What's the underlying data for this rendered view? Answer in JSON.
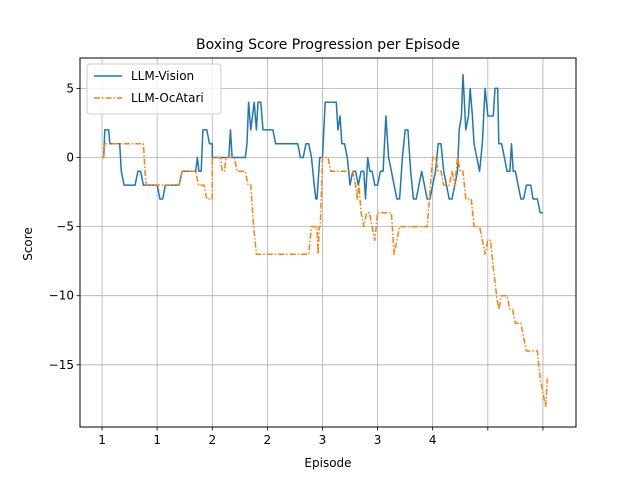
{
  "chart_data": {
    "type": "line",
    "title": "Boxing Score Progression per Episode",
    "xlabel": "Episode",
    "ylabel": "Score",
    "xlim": [
      -40,
      860
    ],
    "ylim": [
      -19.5,
      7.2
    ],
    "xticks": [
      {
        "pos": 0,
        "label": "1"
      },
      {
        "pos": 100,
        "label": "1"
      },
      {
        "pos": 200,
        "label": "2"
      },
      {
        "pos": 300,
        "label": "2"
      },
      {
        "pos": 400,
        "label": "3"
      },
      {
        "pos": 500,
        "label": "3"
      },
      {
        "pos": 600,
        "label": "4"
      },
      {
        "pos": 700,
        "label": ""
      },
      {
        "pos": 800,
        "label": ""
      }
    ],
    "yticks": [
      {
        "value": 5,
        "label": "5"
      },
      {
        "value": 0,
        "label": "0"
      },
      {
        "value": -5,
        "label": "−5"
      },
      {
        "value": -10,
        "label": "−10"
      },
      {
        "value": -15,
        "label": "−15"
      }
    ],
    "grid": true,
    "legend_position": "top-left",
    "series": [
      {
        "name": "LLM-Vision",
        "color": "#1f77b4",
        "style": "solid",
        "points": [
          [
            0,
            0
          ],
          [
            3,
            0
          ],
          [
            5,
            2
          ],
          [
            12,
            2
          ],
          [
            14,
            1
          ],
          [
            28,
            1
          ],
          [
            32,
            1
          ],
          [
            35,
            -1
          ],
          [
            40,
            -2
          ],
          [
            60,
            -2
          ],
          [
            65,
            -1
          ],
          [
            70,
            -1
          ],
          [
            75,
            -2
          ],
          [
            100,
            -2
          ],
          [
            105,
            -3
          ],
          [
            110,
            -3
          ],
          [
            115,
            -2
          ],
          [
            140,
            -2
          ],
          [
            145,
            -1
          ],
          [
            170,
            -1
          ],
          [
            173,
            0
          ],
          [
            176,
            -1
          ],
          [
            180,
            -1
          ],
          [
            183,
            2
          ],
          [
            190,
            2
          ],
          [
            195,
            1
          ],
          [
            200,
            1
          ],
          [
            200,
            0
          ],
          [
            230,
            0
          ],
          [
            233,
            2
          ],
          [
            236,
            0
          ],
          [
            260,
            0
          ],
          [
            263,
            1
          ],
          [
            266,
            4
          ],
          [
            270,
            2
          ],
          [
            276,
            4
          ],
          [
            280,
            2
          ],
          [
            283,
            4
          ],
          [
            288,
            4
          ],
          [
            292,
            2
          ],
          [
            310,
            2
          ],
          [
            315,
            1
          ],
          [
            355,
            1
          ],
          [
            360,
            0
          ],
          [
            365,
            0
          ],
          [
            370,
            1
          ],
          [
            375,
            1
          ],
          [
            380,
            0
          ],
          [
            385,
            -2
          ],
          [
            388,
            -3
          ],
          [
            390,
            -3
          ],
          [
            395,
            0
          ],
          [
            400,
            0
          ],
          [
            405,
            4
          ],
          [
            425,
            4
          ],
          [
            428,
            2
          ],
          [
            432,
            3
          ],
          [
            435,
            1
          ],
          [
            440,
            1
          ],
          [
            445,
            0
          ],
          [
            450,
            -2
          ],
          [
            455,
            -1
          ],
          [
            460,
            -1
          ],
          [
            465,
            -2
          ],
          [
            470,
            -1
          ],
          [
            475,
            -1
          ],
          [
            478,
            -3
          ],
          [
            482,
            0
          ],
          [
            486,
            -1
          ],
          [
            490,
            -1
          ],
          [
            495,
            -2
          ],
          [
            500,
            -2
          ],
          [
            505,
            -1
          ],
          [
            510,
            -1
          ],
          [
            515,
            3
          ],
          [
            520,
            0
          ],
          [
            525,
            -1
          ],
          [
            530,
            -2
          ],
          [
            535,
            -3
          ],
          [
            540,
            -3
          ],
          [
            545,
            0
          ],
          [
            550,
            2
          ],
          [
            555,
            2
          ],
          [
            560,
            -1
          ],
          [
            565,
            -3
          ],
          [
            570,
            -3
          ],
          [
            575,
            -2
          ],
          [
            580,
            -1
          ],
          [
            585,
            -2
          ],
          [
            590,
            -3
          ],
          [
            595,
            -3
          ],
          [
            600,
            -2
          ],
          [
            600,
            -2
          ],
          [
            605,
            -1
          ],
          [
            610,
            1
          ],
          [
            615,
            1
          ],
          [
            620,
            -1
          ],
          [
            625,
            -2
          ],
          [
            630,
            -3
          ],
          [
            635,
            -3
          ],
          [
            640,
            -2
          ],
          [
            645,
            -1
          ],
          [
            648,
            2
          ],
          [
            652,
            3
          ],
          [
            655,
            6
          ],
          [
            660,
            2
          ],
          [
            665,
            3
          ],
          [
            668,
            5
          ],
          [
            672,
            3
          ],
          [
            675,
            1
          ],
          [
            680,
            0
          ],
          [
            685,
            -1
          ],
          [
            690,
            1
          ],
          [
            695,
            5
          ],
          [
            700,
            3
          ],
          [
            710,
            3
          ],
          [
            713,
            5
          ],
          [
            718,
            5
          ],
          [
            720,
            1
          ],
          [
            725,
            1
          ],
          [
            730,
            0
          ],
          [
            735,
            -1
          ],
          [
            740,
            -1
          ],
          [
            743,
            1
          ],
          [
            746,
            -1
          ],
          [
            750,
            -1
          ],
          [
            755,
            -2
          ],
          [
            760,
            -3
          ],
          [
            765,
            -3
          ],
          [
            770,
            -2
          ],
          [
            778,
            -2
          ],
          [
            782,
            -3
          ],
          [
            790,
            -3
          ],
          [
            795,
            -4
          ],
          [
            800,
            -4
          ]
        ]
      },
      {
        "name": "LLM-OcAtari",
        "color": "#ff7f0e",
        "style": "dashdot",
        "points": [
          [
            0,
            0
          ],
          [
            3,
            0
          ],
          [
            5,
            1
          ],
          [
            75,
            1
          ],
          [
            78,
            -1
          ],
          [
            80,
            -2
          ],
          [
            90,
            -2
          ],
          [
            95,
            -2
          ],
          [
            140,
            -2
          ],
          [
            145,
            -1
          ],
          [
            170,
            -1
          ],
          [
            175,
            -2
          ],
          [
            185,
            -2
          ],
          [
            190,
            -3
          ],
          [
            195,
            -3
          ],
          [
            200,
            -3
          ],
          [
            200,
            0
          ],
          [
            215,
            0
          ],
          [
            218,
            -1
          ],
          [
            222,
            -1
          ],
          [
            225,
            0
          ],
          [
            240,
            0
          ],
          [
            245,
            -1
          ],
          [
            260,
            -1
          ],
          [
            265,
            -2
          ],
          [
            270,
            -2
          ],
          [
            275,
            -5
          ],
          [
            280,
            -7
          ],
          [
            375,
            -7
          ],
          [
            380,
            -5
          ],
          [
            390,
            -5
          ],
          [
            392,
            -7
          ],
          [
            394,
            -5
          ],
          [
            396,
            -5
          ],
          [
            400,
            0
          ],
          [
            410,
            0
          ],
          [
            415,
            -1
          ],
          [
            455,
            -1
          ],
          [
            460,
            -2
          ],
          [
            463,
            -3
          ],
          [
            466,
            -2
          ],
          [
            470,
            -4
          ],
          [
            475,
            -5
          ],
          [
            480,
            -4
          ],
          [
            485,
            -4
          ],
          [
            490,
            -5
          ],
          [
            495,
            -6
          ],
          [
            500,
            -4
          ],
          [
            520,
            -4
          ],
          [
            525,
            -4
          ],
          [
            530,
            -7
          ],
          [
            535,
            -6
          ],
          [
            540,
            -5
          ],
          [
            590,
            -5
          ],
          [
            600,
            0
          ],
          [
            605,
            0
          ],
          [
            610,
            -1
          ],
          [
            615,
            -1
          ],
          [
            620,
            -2
          ],
          [
            630,
            -2
          ],
          [
            635,
            -1
          ],
          [
            640,
            -2
          ],
          [
            645,
            0
          ],
          [
            650,
            -1
          ],
          [
            655,
            -1
          ],
          [
            660,
            -3
          ],
          [
            670,
            -3
          ],
          [
            675,
            -5
          ],
          [
            680,
            -5
          ],
          [
            685,
            -5
          ],
          [
            690,
            -6
          ],
          [
            695,
            -7
          ],
          [
            700,
            -6
          ],
          [
            705,
            -6
          ],
          [
            710,
            -8
          ],
          [
            713,
            -9
          ],
          [
            716,
            -10
          ],
          [
            720,
            -11
          ],
          [
            725,
            -10
          ],
          [
            735,
            -10
          ],
          [
            740,
            -11
          ],
          [
            745,
            -11
          ],
          [
            750,
            -12
          ],
          [
            760,
            -12
          ],
          [
            765,
            -13
          ],
          [
            770,
            -14
          ],
          [
            790,
            -14
          ],
          [
            795,
            -16
          ],
          [
            800,
            -17
          ],
          [
            805,
            -18
          ],
          [
            808,
            -16
          ]
        ]
      }
    ]
  }
}
